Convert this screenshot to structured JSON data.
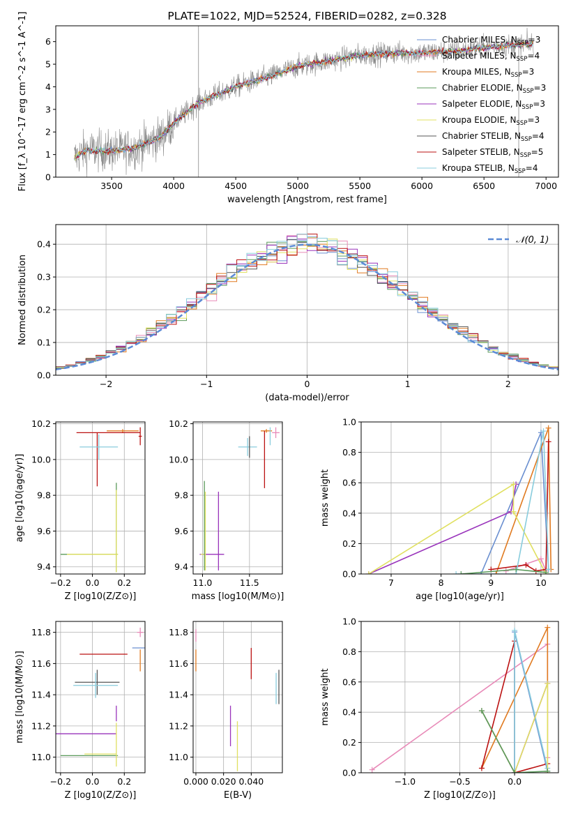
{
  "chart_data": [
    {
      "id": "spectrum",
      "type": "line",
      "title": "PLATE=1022, MJD=52524, FIBERID=0282, z=0.328",
      "xlabel": "wavelength [Angstrom, rest frame]",
      "ylabel": "Flux [f_λ 10^-17 erg cm^-2 s^-1 A^-1]",
      "xlim": [
        3050,
        7100
      ],
      "ylim": [
        0,
        6.7
      ],
      "xticks": [
        3500,
        4000,
        4500,
        5000,
        5500,
        6000,
        6500,
        7000
      ],
      "yticks": [
        0,
        1,
        2,
        3,
        4,
        5,
        6
      ],
      "grid": false,
      "legend_position": "right",
      "series": [
        {
          "name": "Chabrier MILES, N_SSP=3",
          "color": "#6a8fd0"
        },
        {
          "name": "Salpeter MILES, N_SSP=4",
          "color": "#e88ab8"
        },
        {
          "name": "Kroupa MILES, N_SSP=3",
          "color": "#e07a20"
        },
        {
          "name": "Chabrier ELODIE, N_SSP=3",
          "color": "#5a9a5a"
        },
        {
          "name": "Salpeter ELODIE, N_SSP=3",
          "color": "#9933bb"
        },
        {
          "name": "Kroupa ELODIE, N_SSP=3",
          "color": "#e0e060"
        },
        {
          "name": "Chabrier STELIB, N_SSP=4",
          "color": "#555555"
        },
        {
          "name": "Salpeter STELIB, N_SSP=5",
          "color": "#bb1111"
        },
        {
          "name": "Kroupa STELIB, N_SSP=4",
          "color": "#88ccdd"
        }
      ],
      "continuum": {
        "x": [
          3200,
          3300,
          3500,
          3700,
          3900,
          4000,
          4200,
          4500,
          4800,
          5000,
          5300,
          5500,
          5800,
          6000,
          6300,
          6600,
          6900
        ],
        "y": [
          0.85,
          1.2,
          1.15,
          1.3,
          1.8,
          2.4,
          3.3,
          4.0,
          4.5,
          4.9,
          5.2,
          5.4,
          5.5,
          5.5,
          5.6,
          5.8,
          5.9
        ]
      },
      "data_color": "#888888"
    },
    {
      "id": "residuals",
      "type": "bar",
      "xlabel": "(data-model)/error",
      "ylabel": "Normed distribution",
      "xlim": [
        -2.5,
        2.5
      ],
      "ylim": [
        0,
        0.46
      ],
      "xticks": [
        -2,
        -1,
        0,
        1,
        2
      ],
      "yticks": [
        0.0,
        0.1,
        0.2,
        0.3,
        0.4
      ],
      "grid": true,
      "legend_position": "top-right",
      "legend_label": "𝒩(0, 1)",
      "normal_color": "#5b8ad5",
      "bin_width": 0.1
    },
    {
      "id": "age_vs_Z",
      "type": "scatter",
      "xlabel": "Z [log10(Z/Z⊙)]",
      "ylabel": "age  [log10(age/yr)]",
      "xlim": [
        -0.23,
        0.33
      ],
      "ylim": [
        9.36,
        10.21
      ],
      "xticks": [
        -0.2,
        0.0,
        0.2
      ],
      "yticks": [
        9.4,
        9.6,
        9.8,
        10.0,
        10.2
      ],
      "grid": true,
      "points": [
        {
          "x": 0.19,
          "y": 10.16,
          "xerr": 0.1,
          "yerr": 0.01,
          "color": "#e07a20"
        },
        {
          "x": 0.3,
          "y": 10.13,
          "xerr": 0.01,
          "yerr": 0.05,
          "color": "#bb1111"
        },
        {
          "x": 0.1,
          "y": 10.15,
          "xerr": 0.2,
          "yerr": 0.0,
          "color": "#bb1111"
        },
        {
          "x": 0.03,
          "y": 10.0,
          "xerr": 0.0,
          "yerr": 0.15,
          "color": "#bb1111"
        },
        {
          "x": 0.04,
          "y": 10.07,
          "xerr": 0.12,
          "yerr": 0.07,
          "color": "#88ccdd"
        },
        {
          "x": 0.15,
          "y": 9.62,
          "xerr": 0.0,
          "yerr": 0.25,
          "color": "#5a9a5a"
        },
        {
          "x": 0.15,
          "y": 9.6,
          "xerr": 0.0,
          "yerr": 0.23,
          "color": "#e0e060"
        },
        {
          "x": -0.02,
          "y": 9.47,
          "xerr": 0.18,
          "yerr": 0.0,
          "color": "#5a9a5a"
        },
        {
          "x": 0.0,
          "y": 9.47,
          "xerr": 0.16,
          "yerr": 0.0,
          "color": "#e0e060"
        }
      ]
    },
    {
      "id": "age_vs_mass",
      "type": "scatter",
      "xlabel": "mass [log10(M/M⊙)]",
      "ylabel": "",
      "xlim": [
        10.9,
        11.85
      ],
      "ylim": [
        9.36,
        10.21
      ],
      "xticks": [
        11.0,
        11.5
      ],
      "yticks": [
        9.4,
        9.6,
        9.8,
        10.0,
        10.2
      ],
      "grid": true,
      "points": [
        {
          "x": 11.68,
          "y": 10.16,
          "xerr": 0.06,
          "yerr": 0.01,
          "color": "#e07a20"
        },
        {
          "x": 11.78,
          "y": 10.15,
          "xerr": 0.04,
          "yerr": 0.03,
          "color": "#e88ab8"
        },
        {
          "x": 11.72,
          "y": 10.13,
          "xerr": 0.0,
          "yerr": 0.05,
          "color": "#88ccdd"
        },
        {
          "x": 11.66,
          "y": 10.0,
          "xerr": 0.0,
          "yerr": 0.16,
          "color": "#bb1111"
        },
        {
          "x": 11.48,
          "y": 10.07,
          "xerr": 0.1,
          "yerr": 0.05,
          "color": "#88ccdd"
        },
        {
          "x": 11.5,
          "y": 10.07,
          "xerr": 0.0,
          "yerr": 0.06,
          "color": "#555555"
        },
        {
          "x": 11.17,
          "y": 9.6,
          "xerr": 0.0,
          "yerr": 0.22,
          "color": "#9933bb"
        },
        {
          "x": 11.1,
          "y": 9.47,
          "xerr": 0.13,
          "yerr": 0.0,
          "color": "#9933bb"
        },
        {
          "x": 11.0,
          "y": 9.47,
          "xerr": 0.02,
          "yerr": 0.0,
          "color": "#e0e060"
        },
        {
          "x": 11.02,
          "y": 9.63,
          "xerr": 0.0,
          "yerr": 0.25,
          "color": "#5a9a5a"
        },
        {
          "x": 11.03,
          "y": 9.6,
          "xerr": 0.0,
          "yerr": 0.22,
          "color": "#e0e060"
        }
      ]
    },
    {
      "id": "massweight_vs_age",
      "type": "line",
      "xlabel": "age  [log10(age/yr)]",
      "ylabel": "mass weight",
      "xlim": [
        6.4,
        10.35
      ],
      "ylim": [
        0,
        1.0
      ],
      "xticks": [
        7,
        8,
        9,
        10
      ],
      "yticks": [
        0.0,
        0.2,
        0.4,
        0.6,
        0.8,
        1.0
      ],
      "grid": true,
      "series": [
        {
          "color": "#6a8fd0",
          "x": [
            8.8,
            10.0,
            10.15
          ],
          "y": [
            0.0,
            0.93,
            0.03
          ]
        },
        {
          "color": "#e07a20",
          "x": [
            9.1,
            10.15,
            10.2
          ],
          "y": [
            0.0,
            0.96,
            0.03
          ]
        },
        {
          "color": "#e88ab8",
          "x": [
            9.3,
            10.0,
            10.1
          ],
          "y": [
            0.02,
            0.1,
            0.02
          ]
        },
        {
          "color": "#9933bb",
          "x": [
            6.55,
            9.4,
            9.5
          ],
          "y": [
            0.0,
            0.41,
            0.59
          ]
        },
        {
          "color": "#e0e060",
          "x": [
            6.55,
            9.45,
            9.45,
            10.1
          ],
          "y": [
            0.0,
            0.59,
            0.41,
            0.0
          ]
        },
        {
          "color": "#bb1111",
          "x": [
            9.0,
            9.7,
            9.9,
            10.1,
            10.15
          ],
          "y": [
            0.03,
            0.06,
            0.02,
            0.03,
            0.87
          ]
        },
        {
          "color": "#88ccdd",
          "x": [
            8.3,
            9.5,
            10.05,
            10.15
          ],
          "y": [
            0.0,
            0.0,
            0.94,
            0.03
          ]
        },
        {
          "color": "#5a9a5a",
          "x": [
            8.4,
            9.5,
            10.1
          ],
          "y": [
            0.0,
            0.03,
            0.01
          ]
        }
      ]
    },
    {
      "id": "mass_vs_Z",
      "type": "scatter",
      "xlabel": "Z [log10(Z/Z⊙)]",
      "ylabel": "mass [log10(M/M⊙)]",
      "xlim": [
        -0.23,
        0.33
      ],
      "ylim": [
        10.9,
        11.87
      ],
      "xticks": [
        -0.2,
        0.0,
        0.2
      ],
      "yticks": [
        11.0,
        11.2,
        11.4,
        11.6,
        11.8
      ],
      "grid": true,
      "points": [
        {
          "x": 0.3,
          "y": 11.8,
          "xerr": 0.02,
          "yerr": 0.03,
          "color": "#e88ab8"
        },
        {
          "x": 0.3,
          "y": 11.7,
          "xerr": 0.05,
          "yerr": 0.0,
          "color": "#6a8fd0"
        },
        {
          "x": 0.3,
          "y": 11.62,
          "xerr": 0.0,
          "yerr": 0.07,
          "color": "#e07a20"
        },
        {
          "x": 0.07,
          "y": 11.66,
          "xerr": 0.15,
          "yerr": 0.0,
          "color": "#bb1111"
        },
        {
          "x": 0.03,
          "y": 11.48,
          "xerr": 0.14,
          "yerr": 0.08,
          "color": "#555555"
        },
        {
          "x": 0.02,
          "y": 11.46,
          "xerr": 0.14,
          "yerr": 0.08,
          "color": "#88ccdd"
        },
        {
          "x": 0.15,
          "y": 11.28,
          "xerr": 0.0,
          "yerr": 0.05,
          "color": "#9933bb"
        },
        {
          "x": -0.05,
          "y": 11.15,
          "xerr": 0.2,
          "yerr": 0.0,
          "color": "#9933bb"
        },
        {
          "x": 0.05,
          "y": 11.02,
          "xerr": 0.1,
          "yerr": 0.0,
          "color": "#e0e060"
        },
        {
          "x": -0.02,
          "y": 11.01,
          "xerr": 0.18,
          "yerr": 0.0,
          "color": "#5a9a5a"
        },
        {
          "x": 0.15,
          "y": 11.08,
          "xerr": 0.0,
          "yerr": 0.14,
          "color": "#e0e060"
        }
      ]
    },
    {
      "id": "mass_vs_EBV",
      "type": "scatter",
      "xlabel": "E(B-V)",
      "ylabel": "",
      "xlim": [
        -0.002,
        0.0625
      ],
      "ylim": [
        10.9,
        11.87
      ],
      "xticks": [
        0.0,
        0.02,
        0.04
      ],
      "yticks": [
        11.0,
        11.2,
        11.4,
        11.6,
        11.8
      ],
      "grid": true,
      "points": [
        {
          "x": 0.0,
          "y": 11.78,
          "xerr": 0.0,
          "yerr": 0.04,
          "color": "#e88ab8"
        },
        {
          "x": 0.0,
          "y": 11.62,
          "xerr": 0.0,
          "yerr": 0.07,
          "color": "#e07a20"
        },
        {
          "x": 0.04,
          "y": 11.6,
          "xerr": 0.0,
          "yerr": 0.1,
          "color": "#bb1111"
        },
        {
          "x": 0.058,
          "y": 11.44,
          "xerr": 0.0,
          "yerr": 0.1,
          "color": "#88ccdd"
        },
        {
          "x": 0.06,
          "y": 11.45,
          "xerr": 0.0,
          "yerr": 0.11,
          "color": "#555555"
        },
        {
          "x": 0.025,
          "y": 11.2,
          "xerr": 0.0,
          "yerr": 0.13,
          "color": "#9933bb"
        },
        {
          "x": 0.03,
          "y": 11.07,
          "xerr": 0.0,
          "yerr": 0.16,
          "color": "#e0e060"
        }
      ]
    },
    {
      "id": "massweight_vs_Z",
      "type": "line",
      "xlabel": "Z [log10(Z/Z⊙)]",
      "ylabel": "mass weight",
      "xlim": [
        -1.4,
        0.4
      ],
      "ylim": [
        0,
        1.0
      ],
      "xticks": [
        -1.0,
        -0.5,
        0.0
      ],
      "yticks": [
        0.0,
        0.2,
        0.4,
        0.6,
        0.8,
        1.0
      ],
      "grid": true,
      "series": [
        {
          "color": "#e88ab8",
          "x": [
            -1.3,
            0.3,
            0.3
          ],
          "y": [
            0.02,
            0.85,
            0.1
          ]
        },
        {
          "color": "#e07a20",
          "x": [
            -0.3,
            0.3,
            0.3
          ],
          "y": [
            0.03,
            0.96,
            0.0
          ]
        },
        {
          "color": "#bb1111",
          "x": [
            -0.3,
            0.0,
            0.0,
            0.3
          ],
          "y": [
            0.03,
            0.87,
            0.0,
            0.06
          ]
        },
        {
          "color": "#6a8fd0",
          "x": [
            0.0,
            0.0,
            0.3
          ],
          "y": [
            0.0,
            0.93,
            0.01
          ]
        },
        {
          "color": "#88ccdd",
          "x": [
            0.0,
            0.0,
            0.3
          ],
          "y": [
            0.0,
            0.94,
            0.03
          ]
        },
        {
          "color": "#9933bb",
          "x": [
            -0.3,
            0.0,
            0.3
          ],
          "y": [
            0.41,
            0.0,
            0.59
          ]
        },
        {
          "color": "#e0e060",
          "x": [
            -0.3,
            0.0,
            0.3,
            0.3
          ],
          "y": [
            0.41,
            0.0,
            0.59,
            0.0
          ]
        },
        {
          "color": "#5a9a5a",
          "x": [
            -0.3,
            0.0,
            0.3
          ],
          "y": [
            0.41,
            0.0,
            0.01
          ]
        }
      ]
    }
  ]
}
